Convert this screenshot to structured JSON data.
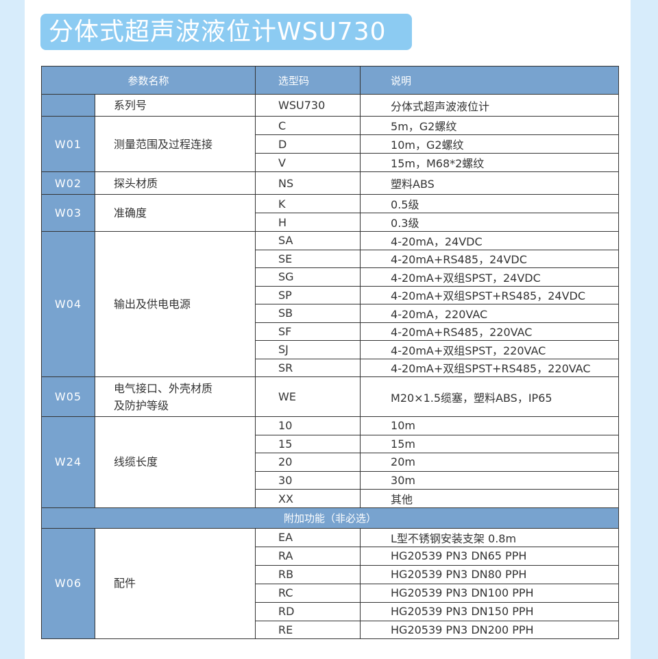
{
  "title": "分体式超声波液位计WSU730",
  "header": {
    "param": "参数名称",
    "code": "选型码",
    "desc": "说明"
  },
  "groups": [
    {
      "code": "",
      "name": "系列号",
      "options": [
        {
          "sel": "WSU730",
          "desc": "分体式超声波液位计"
        }
      ]
    },
    {
      "code": "W01",
      "name": "测量范围及过程连接",
      "options": [
        {
          "sel": "C",
          "desc": "5m，G2螺纹"
        },
        {
          "sel": "D",
          "desc": "10m，G2螺纹"
        },
        {
          "sel": "V",
          "desc": "15m，M68*2螺纹"
        }
      ]
    },
    {
      "code": "W02",
      "name": "探头材质",
      "options": [
        {
          "sel": "NS",
          "desc": "塑料ABS"
        }
      ]
    },
    {
      "code": "W03",
      "name": "准确度",
      "options": [
        {
          "sel": "K",
          "desc": "0.5级"
        },
        {
          "sel": "H",
          "desc": "0.3级"
        }
      ]
    },
    {
      "code": "W04",
      "name": "输出及供电电源",
      "options": [
        {
          "sel": "SA",
          "desc": "4-20mA，24VDC"
        },
        {
          "sel": "SE",
          "desc": "4-20mA+RS485，24VDC"
        },
        {
          "sel": "SG",
          "desc": "4-20mA+双组SPST，24VDC"
        },
        {
          "sel": "SP",
          "desc": "4-20mA+双组SPST+RS485，24VDC"
        },
        {
          "sel": "SB",
          "desc": "4-20mA，220VAC"
        },
        {
          "sel": "SF",
          "desc": "4-20mA+RS485，220VAC"
        },
        {
          "sel": "SJ",
          "desc": "4-20mA+双组SPST，220VAC"
        },
        {
          "sel": "SR",
          "desc": "4-20mA+双组SPST+RS485，220VAC"
        }
      ]
    },
    {
      "code": "W05",
      "name": "电气接口、外壳材质\n及防护等级",
      "options": [
        {
          "sel": "WE",
          "desc": "M20×1.5缆塞，塑料ABS，IP65"
        }
      ]
    },
    {
      "code": "W24",
      "name": "线缆长度",
      "options": [
        {
          "sel": "10",
          "desc": "10m"
        },
        {
          "sel": "15",
          "desc": "15m"
        },
        {
          "sel": "20",
          "desc": "20m"
        },
        {
          "sel": "30",
          "desc": "30m"
        },
        {
          "sel": "XX",
          "desc": "其他"
        }
      ]
    },
    {
      "section": "附加功能（非必选）"
    },
    {
      "code": "W06",
      "name": "配件",
      "options": [
        {
          "sel": "EA",
          "desc": "L型不锈钢安装支架 0.8m"
        },
        {
          "sel": "RA",
          "desc": "HG20539 PN3 DN65 PPH"
        },
        {
          "sel": "RB",
          "desc": "HG20539 PN3 DN80 PPH"
        },
        {
          "sel": "RC",
          "desc": "HG20539 PN3 DN100 PPH"
        },
        {
          "sel": "RD",
          "desc": "HG20539 PN3 DN150 PPH"
        },
        {
          "sel": "RE",
          "desc": "HG20539 PN3 DN200 PPH"
        }
      ]
    }
  ],
  "colors": {
    "header": "#78a3cf",
    "title_badge": "#8ccbf2",
    "side": "#d7ecfb"
  }
}
